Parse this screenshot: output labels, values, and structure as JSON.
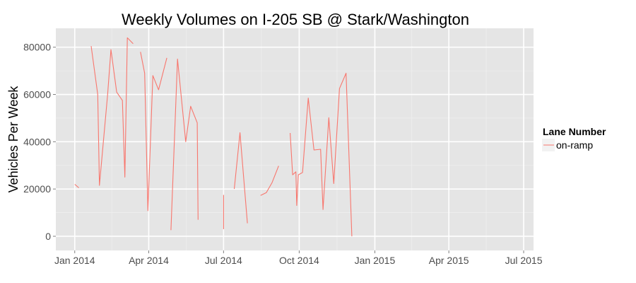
{
  "chart_data": {
    "type": "line",
    "title": "Weekly Volumes on I-205 SB @ Stark/Washington",
    "xlabel": "",
    "ylabel": "Vehicles Per Week",
    "x_type": "date",
    "xlim": [
      "2013-12-09",
      "2015-07-13"
    ],
    "ylim": [
      -6000,
      88000
    ],
    "x_ticks": [
      {
        "date": "2014-01-01",
        "label": "Jan 2014"
      },
      {
        "date": "2014-04-01",
        "label": "Apr 2014"
      },
      {
        "date": "2014-07-01",
        "label": "Jul 2014"
      },
      {
        "date": "2014-10-01",
        "label": "Oct 2014"
      },
      {
        "date": "2015-01-01",
        "label": "Jan 2015"
      },
      {
        "date": "2015-04-01",
        "label": "Apr 2015"
      },
      {
        "date": "2015-07-01",
        "label": "Jul 2015"
      }
    ],
    "y_ticks": [
      {
        "value": 0,
        "label": "0"
      },
      {
        "value": 20000,
        "label": "20000"
      },
      {
        "value": 40000,
        "label": "40000"
      },
      {
        "value": 60000,
        "label": "60000"
      },
      {
        "value": 80000,
        "label": "80000"
      }
    ],
    "grid": true,
    "legend": {
      "title": "Lane Number",
      "position": "right"
    },
    "series": [
      {
        "name": "on-ramp",
        "color": "#f8766d",
        "segments": [
          [
            [
              "2014-01-01",
              22000
            ],
            [
              "2014-01-06",
              20500
            ]
          ],
          [
            [
              "2014-01-21",
              80500
            ],
            [
              "2014-01-29",
              60000
            ],
            [
              "2014-01-31",
              21500
            ],
            [
              "2014-02-10",
              60000
            ],
            [
              "2014-02-14",
              79000
            ],
            [
              "2014-02-21",
              61000
            ],
            [
              "2014-02-28",
              57500
            ],
            [
              "2014-03-03",
              25000
            ],
            [
              "2014-03-06",
              84000
            ],
            [
              "2014-03-13",
              81500
            ]
          ],
          [
            [
              "2014-03-22",
              78000
            ],
            [
              "2014-03-27",
              69000
            ],
            [
              "2014-03-31",
              10800
            ],
            [
              "2014-04-06",
              68000
            ],
            [
              "2014-04-13",
              62000
            ],
            [
              "2014-04-23",
              75500
            ]
          ],
          [
            [
              "2014-04-28",
              2600
            ],
            [
              "2014-05-06",
              75000
            ],
            [
              "2014-05-16",
              40000
            ],
            [
              "2014-05-22",
              55000
            ],
            [
              "2014-05-30",
              48000
            ],
            [
              "2014-05-31",
              7000
            ]
          ],
          [
            [
              "2014-07-01",
              17500
            ],
            [
              "2014-07-01",
              3000
            ]
          ],
          [
            [
              "2014-07-14",
              20000
            ],
            [
              "2014-07-21",
              43800
            ],
            [
              "2014-07-30",
              5500
            ]
          ],
          [
            [
              "2014-08-15",
              17300
            ],
            [
              "2014-08-22",
              18500
            ],
            [
              "2014-08-29",
              22700
            ],
            [
              "2014-09-06",
              29800
            ]
          ],
          [
            [
              "2014-09-20",
              43700
            ],
            [
              "2014-09-23",
              26000
            ],
            [
              "2014-09-27",
              27300
            ],
            [
              "2014-09-28",
              13000
            ],
            [
              "2014-09-30",
              26000
            ],
            [
              "2014-10-05",
              27000
            ],
            [
              "2014-10-12",
              58500
            ],
            [
              "2014-10-19",
              36500
            ],
            [
              "2014-10-27",
              36800
            ],
            [
              "2014-10-30",
              11300
            ],
            [
              "2014-11-06",
              50200
            ],
            [
              "2014-11-12",
              22300
            ],
            [
              "2014-11-19",
              62500
            ],
            [
              "2014-11-27",
              69000
            ],
            [
              "2014-12-04",
              0
            ]
          ]
        ]
      }
    ]
  }
}
